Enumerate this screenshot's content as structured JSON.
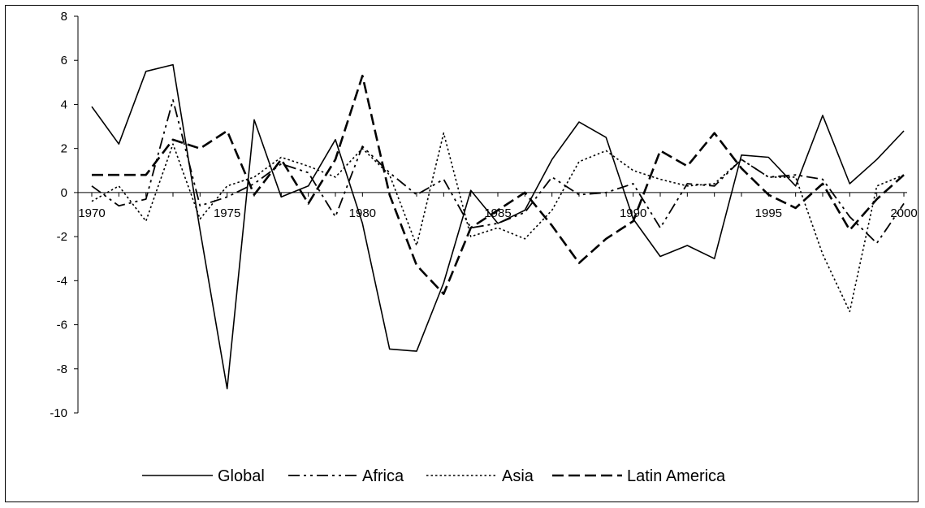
{
  "chart_data": {
    "type": "line",
    "title": "",
    "xlabel": "",
    "ylabel": "",
    "xlim": [
      1970,
      2000
    ],
    "ylim": [
      -10,
      8
    ],
    "y_ticks": [
      -10,
      -8,
      -6,
      -4,
      -2,
      0,
      2,
      4,
      6,
      8
    ],
    "x_ticks": [
      1970,
      1975,
      1980,
      1985,
      1990,
      1995,
      2000
    ],
    "x_tick_labels": [
      "1970",
      "1975",
      "1980",
      "1985",
      "1990",
      "1995",
      "2000"
    ],
    "grid": false,
    "legend_position": "bottom",
    "x": [
      1970,
      1971,
      1972,
      1973,
      1974,
      1975,
      1976,
      1977,
      1978,
      1979,
      1980,
      1981,
      1982,
      1983,
      1984,
      1985,
      1986,
      1987,
      1988,
      1989,
      1990,
      1991,
      1992,
      1993,
      1994,
      1995,
      1996,
      1997,
      1998,
      1999,
      2000
    ],
    "series": [
      {
        "name": "Global",
        "style": "solid",
        "values": [
          3.9,
          2.2,
          5.5,
          5.8,
          -1.7,
          -8.9,
          3.3,
          -0.2,
          0.3,
          2.4,
          -1.4,
          -7.1,
          -7.2,
          -4.1,
          0.1,
          -1.4,
          -0.8,
          1.5,
          3.2,
          2.5,
          -1.2,
          -2.9,
          -2.4,
          -3.0,
          1.7,
          1.6,
          0.3,
          3.5,
          0.4,
          1.5,
          2.8
        ]
      },
      {
        "name": "Africa",
        "style": "dashdotdot",
        "values": [
          0.3,
          -0.6,
          -0.3,
          4.2,
          -0.6,
          -0.2,
          0.4,
          1.3,
          0.9,
          -1.1,
          2.1,
          0.9,
          -0.1,
          0.6,
          -1.6,
          -1.4,
          -0.9,
          0.7,
          -0.1,
          0.0,
          0.4,
          -1.6,
          0.4,
          0.3,
          1.5,
          0.7,
          0.8,
          0.6,
          -1.1,
          -2.3,
          -0.5
        ]
      },
      {
        "name": "Asia",
        "style": "dotted",
        "values": [
          -0.4,
          0.3,
          -1.3,
          2.2,
          -1.2,
          0.3,
          0.7,
          1.6,
          1.2,
          0.7,
          2.0,
          0.8,
          -2.4,
          2.7,
          -2.0,
          -1.6,
          -2.1,
          -0.8,
          1.4,
          1.9,
          1.0,
          0.6,
          0.3,
          0.4,
          1.5,
          0.7,
          0.7,
          -2.8,
          -5.4,
          0.3,
          0.8
        ]
      },
      {
        "name": "Latin America",
        "style": "longdash",
        "values": [
          0.8,
          0.8,
          0.8,
          2.4,
          2.0,
          2.8,
          -0.1,
          1.5,
          -0.5,
          1.5,
          5.3,
          -0.1,
          -3.3,
          -4.6,
          -1.6,
          -0.8,
          0.0,
          -1.5,
          -3.2,
          -2.1,
          -1.3,
          1.9,
          1.2,
          2.7,
          1.1,
          -0.1,
          -0.7,
          0.4,
          -1.7,
          -0.3,
          0.8
        ]
      }
    ]
  }
}
